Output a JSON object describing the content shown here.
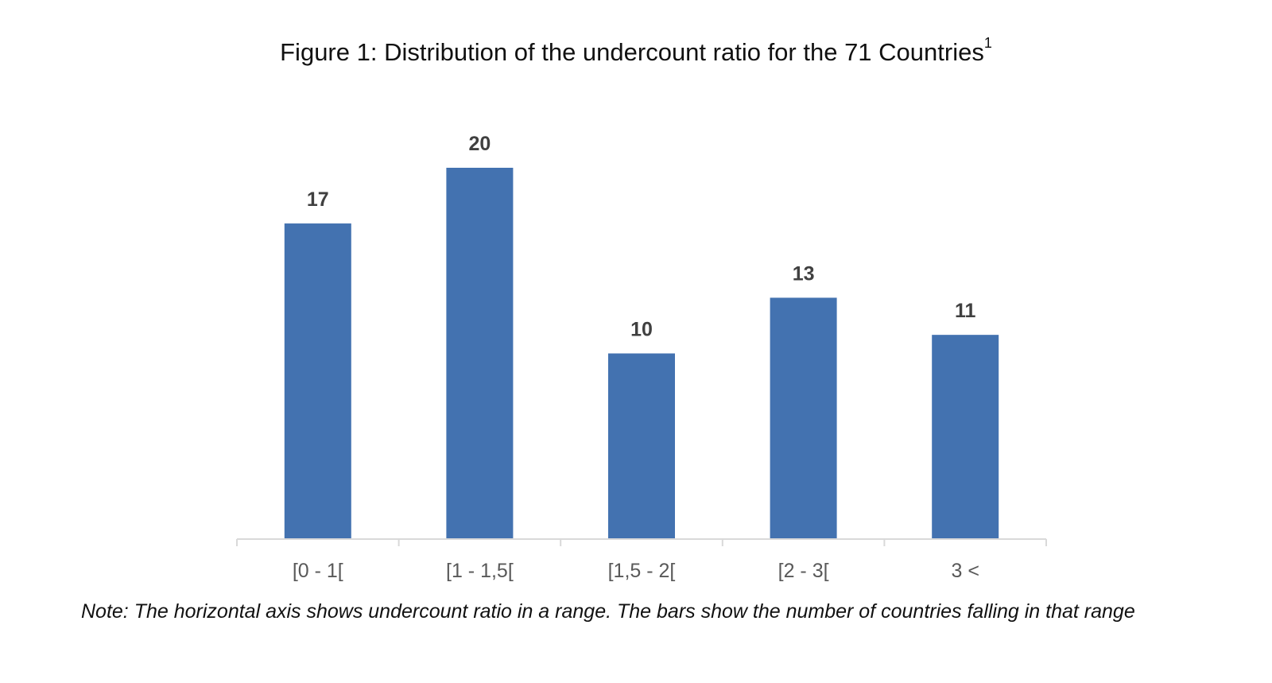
{
  "figure": {
    "title": "Figure 1: Distribution of the undercount ratio for the 71 Countries",
    "title_superscript": "1",
    "note": "Note: The horizontal axis shows undercount ratio in a range. The bars show the number of countries falling in that range"
  },
  "chart_data": {
    "type": "bar",
    "title": "Figure 1: Distribution of the undercount ratio for the 71 Countries",
    "categories": [
      "[0 - 1[",
      "[1 - 1,5[",
      "[1,5 - 2[",
      "[2 - 3[",
      "3 <"
    ],
    "values": [
      17,
      20,
      10,
      13,
      11
    ],
    "xlabel": "",
    "ylabel": "",
    "ylim": [
      0,
      20
    ],
    "grid": false,
    "legend": "none",
    "data_labels": true,
    "colors": {
      "bar": "#4372b0",
      "axis": "#d9d9d9",
      "value_label": "#404040",
      "tick_label": "#595959"
    }
  }
}
